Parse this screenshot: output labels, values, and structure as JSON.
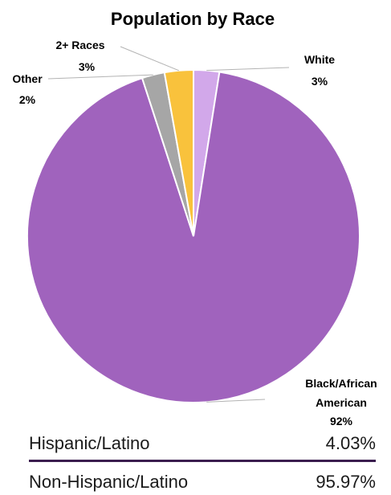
{
  "chart_data": {
    "type": "pie",
    "title": "Population by Race",
    "slices": [
      {
        "name": "White",
        "value": 2.5,
        "label_name": "White",
        "label_value": "3%",
        "color": "#d2a8ea"
      },
      {
        "name": "Black/African American",
        "value": 92.5,
        "label_name_lines": [
          "Black/African",
          "American"
        ],
        "label_value": "92%",
        "color": "#a063bd"
      },
      {
        "name": "Other",
        "value": 2.2,
        "label_name": "Other",
        "label_value": "2%",
        "color": "#a6a6a6"
      },
      {
        "name": "2+ Races",
        "value": 2.8,
        "label_name": "2+ Races",
        "label_value": "3%",
        "color": "#f9c23c"
      }
    ],
    "legend": "none"
  },
  "stats": [
    {
      "label": "Hispanic/Latino",
      "value": "4.03%"
    },
    {
      "label": "Non-Hispanic/Latino",
      "value": "95.97%"
    }
  ],
  "colors": {
    "divider": "#3b1e4f",
    "leader_line": "#b3b3b3"
  }
}
